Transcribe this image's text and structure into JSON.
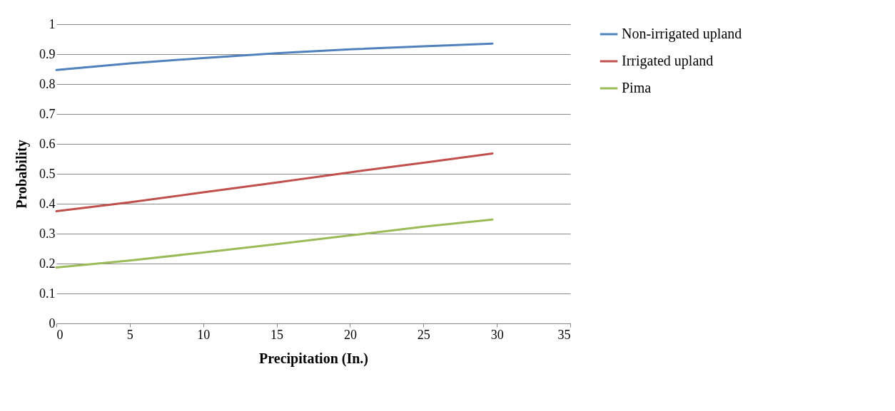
{
  "chart_data": {
    "type": "line",
    "xlabel": "Precipitation (In.)",
    "ylabel": "Probability",
    "x": [
      0,
      5,
      10,
      15,
      20,
      25,
      29.7
    ],
    "series": [
      {
        "name": "Non-irrigated upland",
        "color": "#4f81bd",
        "values": [
          0.847,
          0.869,
          0.887,
          0.903,
          0.916,
          0.926,
          0.935
        ]
      },
      {
        "name": "Irrigated upland",
        "color": "#c0504d",
        "values": [
          0.375,
          0.405,
          0.438,
          0.471,
          0.505,
          0.537,
          0.568
        ]
      },
      {
        "name": "Pima",
        "color": "#9bbb59",
        "values": [
          0.187,
          0.21,
          0.237,
          0.265,
          0.294,
          0.323,
          0.347
        ]
      }
    ],
    "xlim": [
      0,
      35
    ],
    "xticks": [
      0,
      5,
      10,
      15,
      20,
      25,
      30,
      35
    ],
    "ylim": [
      0,
      1
    ],
    "yticks": [
      0,
      0.1,
      0.2,
      0.3,
      0.4,
      0.5,
      0.6,
      0.7,
      0.8,
      0.9,
      1
    ],
    "grid": "y",
    "legend": "right"
  }
}
